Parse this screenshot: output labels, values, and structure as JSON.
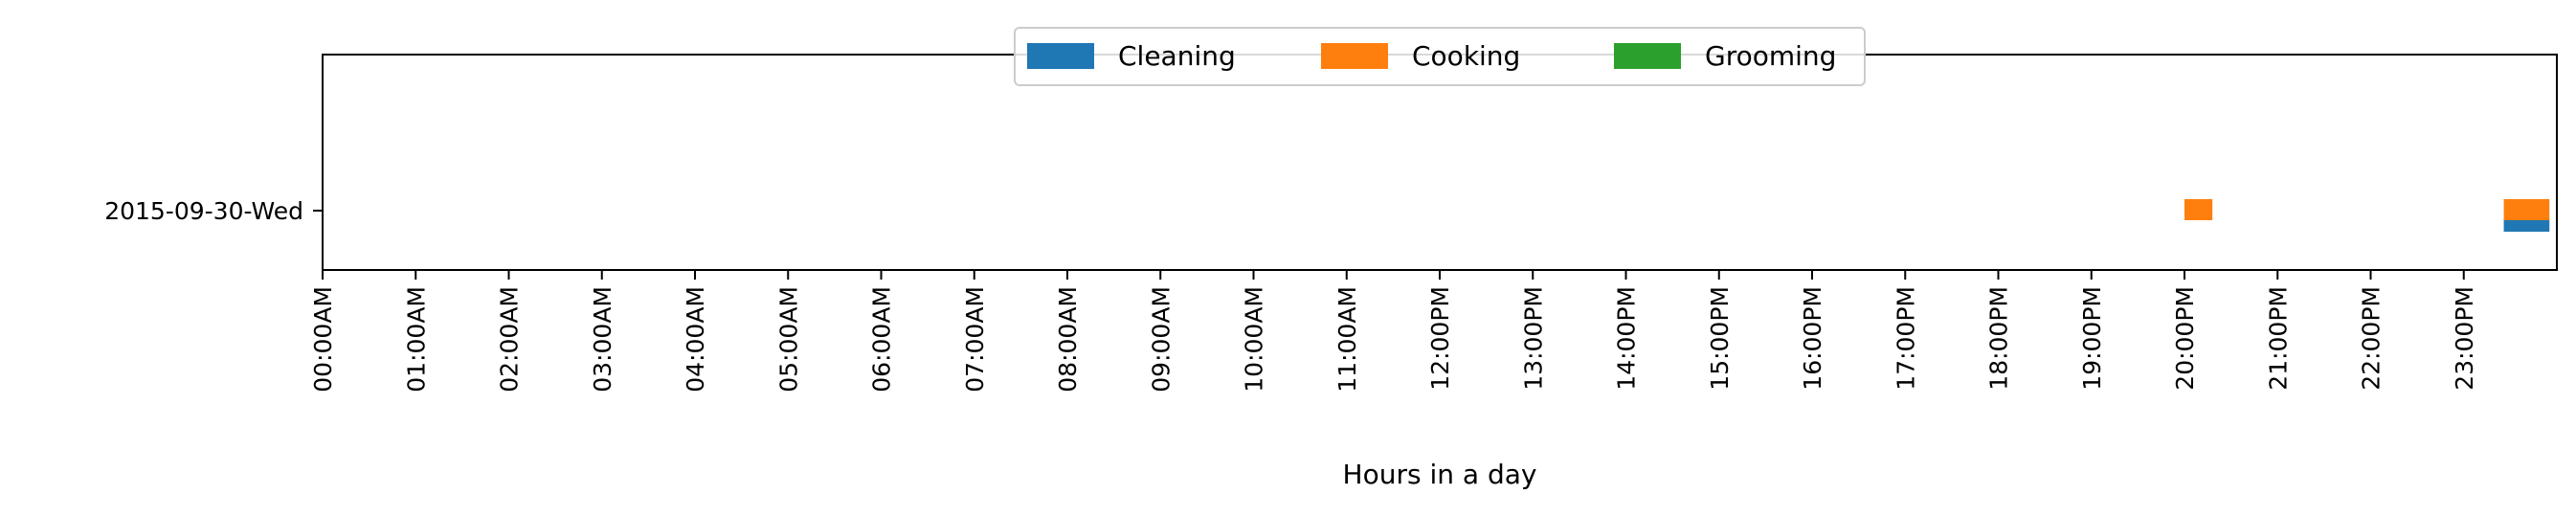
{
  "chart_data": {
    "type": "timeline",
    "title": "",
    "xlabel": "Hours in a day",
    "ylabel": "",
    "xlim": [
      0,
      24
    ],
    "x_tick_values": [
      0,
      1,
      2,
      3,
      4,
      5,
      6,
      7,
      8,
      9,
      10,
      11,
      12,
      13,
      14,
      15,
      16,
      17,
      18,
      19,
      20,
      21,
      22,
      23
    ],
    "x_tick_labels": [
      "00:00AM",
      "01:00AM",
      "02:00AM",
      "03:00AM",
      "04:00AM",
      "05:00AM",
      "06:00AM",
      "07:00AM",
      "08:00AM",
      "09:00AM",
      "10:00AM",
      "11:00AM",
      "12:00PM",
      "13:00PM",
      "14:00PM",
      "15:00PM",
      "16:00PM",
      "17:00PM",
      "18:00PM",
      "19:00PM",
      "20:00PM",
      "21:00PM",
      "22:00PM",
      "23:00PM"
    ],
    "categories": [
      "2015-09-30-Wed"
    ],
    "legend_position": "top-center",
    "grid": false,
    "series": [
      {
        "name": "Cleaning",
        "color": "#1f77b4",
        "intervals": [
          {
            "category": "2015-09-30-Wed",
            "start": 23.43,
            "end": 23.92
          }
        ]
      },
      {
        "name": "Cooking",
        "color": "#ff7f0e",
        "intervals": [
          {
            "category": "2015-09-30-Wed",
            "start": 20.0,
            "end": 20.3
          },
          {
            "category": "2015-09-30-Wed",
            "start": 23.43,
            "end": 23.92
          }
        ]
      },
      {
        "name": "Grooming",
        "color": "#2ca02c",
        "intervals": []
      }
    ]
  }
}
